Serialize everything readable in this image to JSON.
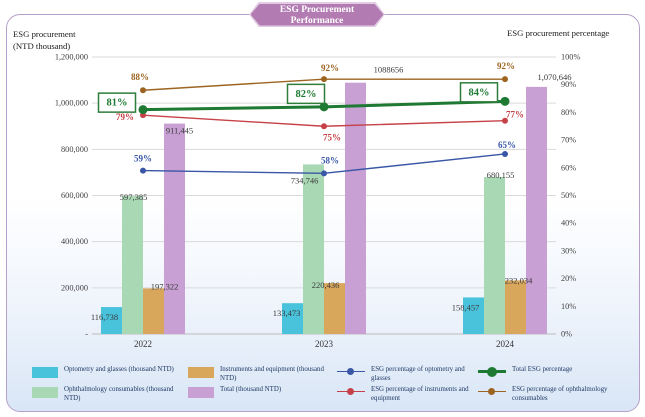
{
  "title": {
    "line1": "ESG Procurement",
    "line2": "Performance"
  },
  "axes": {
    "left_title_line1": "ESG procurement",
    "left_title_line2": "(NTD thousand)",
    "right_title": "ESG procurement percentage"
  },
  "chart_data": {
    "type": "bar",
    "subtype": "bar-line-combo",
    "title": "ESG Procurement Performance",
    "categories": [
      "2022",
      "2023",
      "2024"
    ],
    "left_axis": {
      "label": "ESG procurement (NTD thousand)",
      "ylim": [
        0,
        1200000
      ],
      "ticks": [
        "1,200,000",
        "1,000,000",
        "800,000",
        "600,000",
        "400,000",
        "200,000",
        "-"
      ]
    },
    "right_axis": {
      "label": "ESG procurement percentage",
      "ylim": [
        0,
        100
      ],
      "ticks": [
        "100%",
        "90%",
        "80%",
        "70%",
        "60%",
        "50%",
        "40%",
        "30%",
        "20%",
        "10%",
        "0%"
      ]
    },
    "grid": "horizontal",
    "legend_position": "bottom",
    "bar_series": [
      {
        "name": "Optometry and glasses (thousand NTD)",
        "color": "#49c3dc",
        "values": [
          116738,
          133473,
          158457
        ],
        "labels": [
          "116,738",
          "133,473",
          "158,457"
        ]
      },
      {
        "name": "Ophthalmology consumables (thousand NTD)",
        "color": "#a8d8b4",
        "values": [
          597385,
          734746,
          680155
        ],
        "labels": [
          "597,385",
          "734,746",
          "680,155"
        ]
      },
      {
        "name": "Instruments and equipment (thousand NTD)",
        "color": "#d8a75c",
        "values": [
          197322,
          220436,
          232034
        ],
        "labels": [
          "197,322",
          "220,436",
          "232,034"
        ]
      },
      {
        "name": "Total (thousand NTD)",
        "color": "#c8a0d3",
        "values": [
          911445,
          1088656,
          1070646
        ],
        "labels": [
          "911,445",
          "1088656",
          "1,070,646"
        ]
      }
    ],
    "line_series": [
      {
        "name": "ESG percentage of optometry and glasses",
        "color": "#3a57a7",
        "values": [
          59,
          58,
          65
        ],
        "labels": [
          "59%",
          "58%",
          "65%"
        ],
        "boxed": false,
        "thick": false
      },
      {
        "name": "ESG percentage of instruments and equipment",
        "color": "#c64248",
        "values": [
          79,
          75,
          77
        ],
        "labels": [
          "79%",
          "75%",
          "77%"
        ],
        "boxed": false,
        "thick": false
      },
      {
        "name": "Total ESG percentage",
        "color": "#1e7a33",
        "values": [
          81,
          82,
          84
        ],
        "labels": [
          "81%",
          "82%",
          "84%"
        ],
        "boxed": true,
        "thick": true
      },
      {
        "name": "ESG percentage of ophthalmology consumables",
        "color": "#9c6420",
        "values": [
          88,
          92,
          92
        ],
        "labels": [
          "88%",
          "92%",
          "92%"
        ],
        "boxed": false,
        "thick": false
      }
    ]
  },
  "legend": {
    "bar_items": [
      {
        "label": "Optometry and glasses (thousand NTD)",
        "color": "#49c3dc"
      },
      {
        "label": "Ophthalmology consumables (thousand NTD)",
        "color": "#a8d8b4"
      },
      {
        "label": "Instruments and equipment (thousand NTD)",
        "color": "#d8a75c"
      },
      {
        "label": "Total (thousand NTD)",
        "color": "#c8a0d3"
      }
    ],
    "line_items": [
      {
        "label": "ESG percentage of optometry and glasses",
        "color": "#3a57a7"
      },
      {
        "label": "ESG percentage of instruments and equipment",
        "color": "#c64248"
      },
      {
        "label": "Total ESG percentage",
        "color": "#1e7a33"
      },
      {
        "label": "ESG percentage of ophthalmology consumables",
        "color": "#9c6420"
      }
    ]
  }
}
